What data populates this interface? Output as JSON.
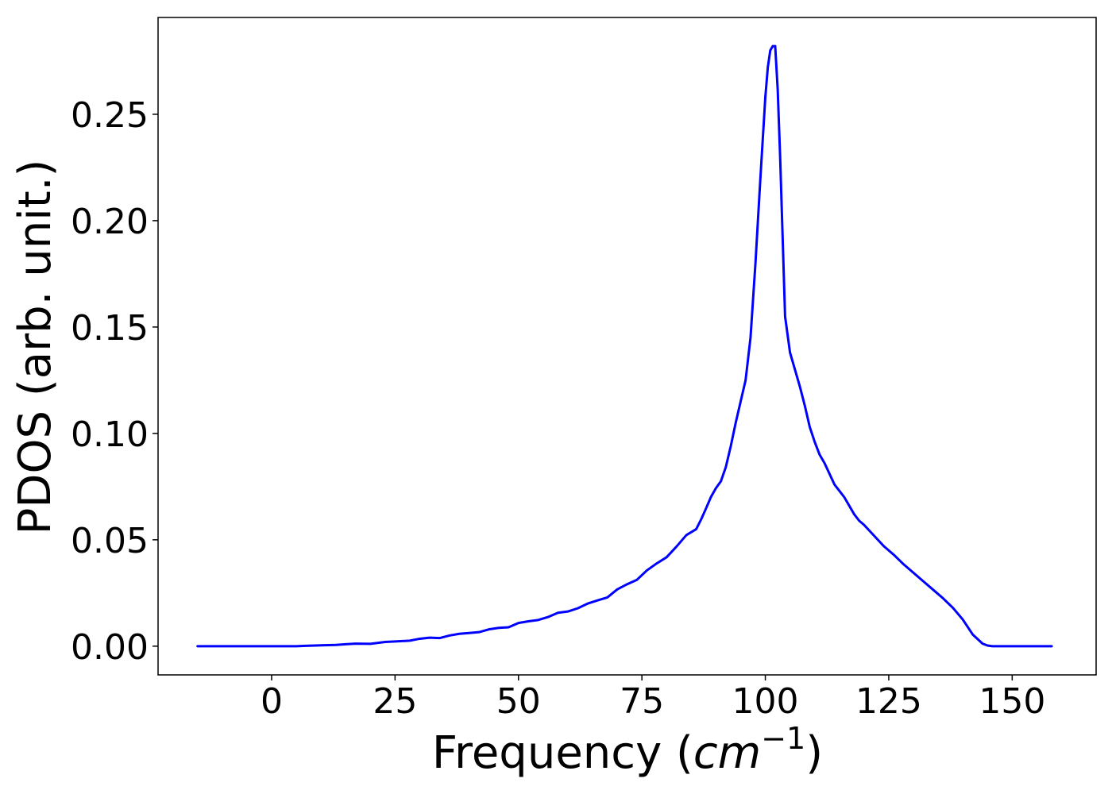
{
  "chart_data": {
    "type": "line",
    "title": "",
    "xlabel": "Frequency (",
    "xlabel_math": "cm",
    "xlabel_exponent": "−1",
    "xlabel_close": ")",
    "ylabel": "PDOS (arb. unit.)",
    "xlim": [
      -23,
      167
    ],
    "ylim": [
      -0.0135,
      0.2955
    ],
    "xticks": [
      0,
      25,
      50,
      75,
      100,
      125,
      150
    ],
    "xtick_labels": [
      "0",
      "25",
      "50",
      "75",
      "100",
      "125",
      "150"
    ],
    "yticks": [
      0.0,
      0.05,
      0.1,
      0.15,
      0.2,
      0.25
    ],
    "ytick_labels": [
      "0.00",
      "0.05",
      "0.10",
      "0.15",
      "0.20",
      "0.25"
    ],
    "grid": false,
    "legend": "none",
    "series": [
      {
        "color": "#0000ff",
        "x": [
          -15,
          0,
          5,
          10,
          13,
          15,
          17,
          20,
          23,
          25,
          28,
          30,
          32,
          34,
          36,
          38,
          40,
          42,
          44,
          46,
          48,
          50,
          52,
          54,
          56,
          58,
          60,
          62,
          64,
          66,
          68,
          70,
          72,
          74,
          76,
          78,
          80,
          82,
          84,
          86,
          87,
          88,
          89,
          90,
          91,
          92,
          93,
          94,
          95,
          96,
          97,
          98,
          99,
          100,
          100.5,
          101,
          101.5,
          102,
          102.5,
          103,
          104,
          105,
          106,
          107,
          108,
          109,
          110,
          111,
          112,
          113,
          114,
          115,
          116,
          117,
          118,
          119,
          120,
          122,
          124,
          126,
          128,
          130,
          132,
          134,
          136,
          138,
          140,
          142,
          144,
          145,
          146,
          147,
          148,
          150,
          155,
          158
        ],
        "y": [
          0.0,
          0.0,
          0.0,
          0.0004,
          0.0006,
          0.0009,
          0.0012,
          0.0011,
          0.002,
          0.0022,
          0.0026,
          0.0035,
          0.004,
          0.0038,
          0.005,
          0.0058,
          0.0062,
          0.0066,
          0.0079,
          0.0086,
          0.0089,
          0.0109,
          0.0117,
          0.0123,
          0.0137,
          0.0157,
          0.0163,
          0.0178,
          0.02,
          0.0215,
          0.0229,
          0.0267,
          0.0291,
          0.0312,
          0.0356,
          0.0389,
          0.0418,
          0.0468,
          0.0522,
          0.055,
          0.0596,
          0.0648,
          0.0702,
          0.0743,
          0.0775,
          0.0842,
          0.094,
          0.105,
          0.115,
          0.125,
          0.145,
          0.18,
          0.22,
          0.258,
          0.272,
          0.28,
          0.282,
          0.282,
          0.262,
          0.23,
          0.155,
          0.138,
          0.13,
          0.122,
          0.113,
          0.103,
          0.096,
          0.09,
          0.086,
          0.081,
          0.076,
          0.073,
          0.07,
          0.066,
          0.062,
          0.059,
          0.057,
          0.052,
          0.047,
          0.043,
          0.0385,
          0.0345,
          0.0305,
          0.0265,
          0.0225,
          0.018,
          0.0125,
          0.0055,
          0.0012,
          0.0003,
          0.0,
          0.0,
          0.0,
          0.0,
          0.0,
          0.0
        ]
      }
    ]
  }
}
